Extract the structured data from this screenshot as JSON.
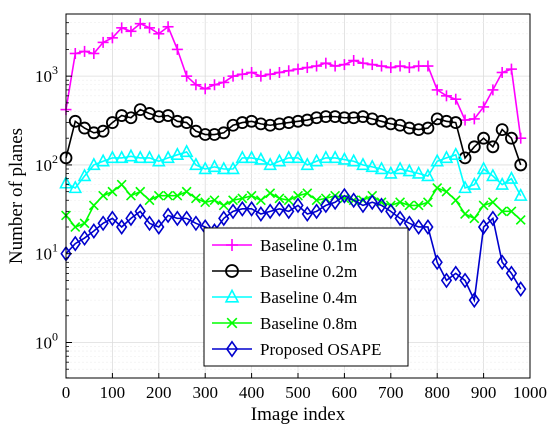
{
  "chart_data": {
    "type": "line",
    "xlabel": "Image index",
    "ylabel": "Number of planes",
    "xlim": [
      0,
      1000
    ],
    "ylim_log10": [
      -0.4,
      3.7
    ],
    "y_scale": "log",
    "x_ticks": [
      "0",
      "100",
      "200",
      "300",
      "400",
      "500",
      "600",
      "700",
      "800",
      "900",
      "1000"
    ],
    "y_ticks": [
      {
        "value": 1,
        "base": "10",
        "exp": "0"
      },
      {
        "value": 10,
        "base": "10",
        "exp": "1"
      },
      {
        "value": 100,
        "base": "10",
        "exp": "2"
      },
      {
        "value": 1000,
        "base": "10",
        "exp": "3"
      }
    ],
    "grid": true,
    "legend_position": "bottom-center",
    "x": [
      0,
      20,
      40,
      60,
      80,
      100,
      120,
      140,
      160,
      180,
      200,
      220,
      240,
      260,
      280,
      300,
      320,
      340,
      360,
      380,
      400,
      420,
      440,
      460,
      480,
      500,
      520,
      540,
      560,
      580,
      600,
      620,
      640,
      660,
      680,
      700,
      720,
      740,
      760,
      780,
      800,
      820,
      840,
      860,
      880,
      900,
      920,
      940,
      960,
      980
    ],
    "series": [
      {
        "name": "Baseline 0.1m",
        "color": "#ff00ff",
        "marker": "plus",
        "values": [
          420,
          1800,
          1900,
          1800,
          2400,
          2700,
          3500,
          3200,
          3900,
          3500,
          3000,
          3600,
          2000,
          1000,
          800,
          720,
          800,
          850,
          1000,
          1050,
          1100,
          1000,
          1050,
          1100,
          1150,
          1200,
          1250,
          1300,
          1400,
          1300,
          1350,
          1500,
          1400,
          1350,
          1300,
          1250,
          1300,
          1250,
          1300,
          1300,
          700,
          600,
          550,
          320,
          330,
          450,
          700,
          1100,
          1200,
          200
        ]
      },
      {
        "name": "Baseline 0.2m",
        "color": "#000000",
        "marker": "circle",
        "values": [
          120,
          310,
          260,
          230,
          240,
          300,
          360,
          340,
          420,
          380,
          350,
          360,
          310,
          300,
          240,
          220,
          220,
          230,
          280,
          300,
          310,
          290,
          280,
          290,
          300,
          310,
          320,
          340,
          350,
          350,
          340,
          340,
          350,
          330,
          310,
          290,
          280,
          260,
          250,
          260,
          330,
          310,
          300,
          120,
          160,
          200,
          160,
          250,
          200,
          100
        ]
      },
      {
        "name": "Baseline 0.4m",
        "color": "#00ffff",
        "marker": "triangle",
        "values": [
          62,
          55,
          75,
          100,
          110,
          120,
          120,
          125,
          120,
          120,
          110,
          120,
          130,
          140,
          100,
          90,
          95,
          90,
          90,
          120,
          120,
          115,
          100,
          110,
          120,
          120,
          100,
          110,
          120,
          120,
          115,
          110,
          100,
          95,
          90,
          80,
          90,
          85,
          80,
          75,
          110,
          120,
          130,
          55,
          60,
          90,
          75,
          60,
          70,
          45
        ]
      },
      {
        "name": "Baseline 0.8m",
        "color": "#00ff00",
        "marker": "x",
        "values": [
          27,
          20,
          22,
          35,
          45,
          50,
          60,
          45,
          50,
          40,
          45,
          45,
          45,
          50,
          42,
          38,
          40,
          35,
          40,
          42,
          45,
          40,
          48,
          42,
          40,
          45,
          48,
          40,
          42,
          45,
          42,
          40,
          40,
          45,
          38,
          35,
          38,
          35,
          35,
          38,
          55,
          50,
          40,
          28,
          25,
          35,
          38,
          30,
          30,
          24
        ]
      },
      {
        "name": "Proposed OSAPE",
        "color": "#0000cd",
        "marker": "diamond",
        "values": [
          10,
          13,
          15,
          18,
          22,
          25,
          20,
          25,
          30,
          22,
          20,
          27,
          25,
          25,
          22,
          20,
          18,
          25,
          30,
          32,
          32,
          28,
          30,
          32,
          30,
          35,
          28,
          30,
          35,
          38,
          45,
          40,
          35,
          38,
          35,
          30,
          25,
          22,
          20,
          20,
          8,
          5,
          6,
          5,
          3,
          20,
          25,
          8,
          6,
          4
        ]
      }
    ]
  }
}
